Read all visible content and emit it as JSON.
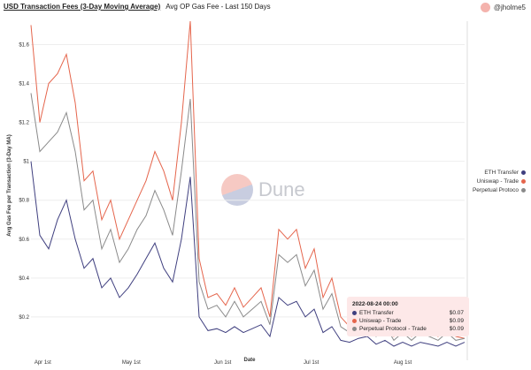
{
  "header": {
    "title": "USD Transaction Fees (3-Day Moving Average)",
    "subtitle": "Avg OP Gas Fee - Last 150 Days",
    "user": "@jholme5"
  },
  "watermark": "Dune",
  "tooltip": {
    "date": "2022-08-24 00:00",
    "rows": [
      {
        "label": "ETH Transfer",
        "value": "$0.07"
      },
      {
        "label": "Uniswap - Trade",
        "value": "$0.09"
      },
      {
        "label": "Perpetual Protocol - Trade",
        "value": "$0.09"
      }
    ]
  },
  "legend": [
    "ETH Transfer",
    "Uniswap - Trade",
    "Perpetual Protoco"
  ],
  "chart_data": {
    "type": "line",
    "title": "USD Transaction Fees (3-Day Moving Average)",
    "xlabel": "Date",
    "ylabel": "Avg Gas Fee per Transaction (3-Day MA)",
    "ylim": [
      0,
      1.72
    ],
    "yticks": [
      "$0.2",
      "$0.4",
      "$0.6",
      "$0.8",
      "$1",
      "$1.2",
      "$1.4",
      "$1.6"
    ],
    "ytick_values": [
      0.2,
      0.4,
      0.6,
      0.8,
      1,
      1.2,
      1.4,
      1.6
    ],
    "xticks": [
      "Apr 1st",
      "May 1st",
      "Jun 1st",
      "Jul 1st",
      "Aug 1st"
    ],
    "xtick_days": [
      4,
      34,
      65,
      95,
      126
    ],
    "x_step_days": 3,
    "colors": {
      "ETH Transfer": "#3f3f7f",
      "Uniswap - Trade": "#e5654c",
      "Perpetual Protocol - Trade": "#8a8a8a"
    },
    "series": [
      {
        "name": "ETH Transfer",
        "values": [
          1.0,
          0.62,
          0.55,
          0.7,
          0.8,
          0.6,
          0.45,
          0.5,
          0.35,
          0.4,
          0.3,
          0.35,
          0.42,
          0.5,
          0.58,
          0.45,
          0.38,
          0.6,
          0.92,
          0.2,
          0.13,
          0.14,
          0.12,
          0.15,
          0.12,
          0.14,
          0.16,
          0.1,
          0.3,
          0.26,
          0.28,
          0.2,
          0.24,
          0.12,
          0.15,
          0.08,
          0.07,
          0.09,
          0.1,
          0.06,
          0.08,
          0.05,
          0.07,
          0.05,
          0.07,
          0.06,
          0.05,
          0.07,
          0.05,
          0.07
        ]
      },
      {
        "name": "Uniswap - Trade",
        "values": [
          1.7,
          1.2,
          1.4,
          1.45,
          1.55,
          1.3,
          0.9,
          0.95,
          0.7,
          0.8,
          0.6,
          0.7,
          0.8,
          0.9,
          1.05,
          0.95,
          0.8,
          1.2,
          1.72,
          0.5,
          0.3,
          0.32,
          0.26,
          0.35,
          0.25,
          0.3,
          0.35,
          0.2,
          0.65,
          0.6,
          0.65,
          0.45,
          0.55,
          0.3,
          0.4,
          0.2,
          0.15,
          0.2,
          0.25,
          0.13,
          0.2,
          0.1,
          0.15,
          0.1,
          0.15,
          0.12,
          0.1,
          0.15,
          0.1,
          0.09
        ]
      },
      {
        "name": "Perpetual Protocol - Trade",
        "values": [
          1.35,
          1.05,
          1.1,
          1.15,
          1.25,
          1.05,
          0.75,
          0.8,
          0.55,
          0.65,
          0.48,
          0.55,
          0.65,
          0.72,
          0.85,
          0.75,
          0.62,
          0.95,
          1.32,
          0.38,
          0.24,
          0.26,
          0.2,
          0.28,
          0.2,
          0.24,
          0.28,
          0.16,
          0.52,
          0.48,
          0.52,
          0.36,
          0.44,
          0.24,
          0.32,
          0.15,
          0.12,
          0.16,
          0.2,
          0.1,
          0.16,
          0.08,
          0.12,
          0.08,
          0.12,
          0.1,
          0.08,
          0.12,
          0.08,
          0.09
        ]
      }
    ]
  }
}
